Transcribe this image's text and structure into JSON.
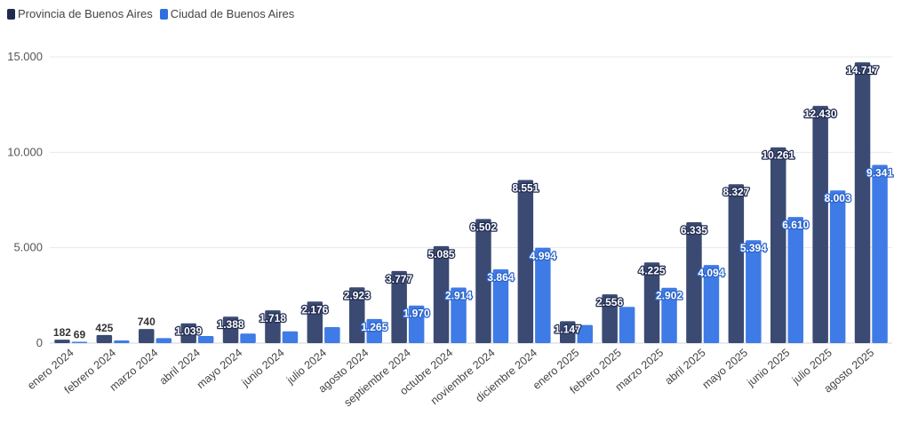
{
  "chart_data": {
    "type": "bar",
    "categories": [
      "enero 2024",
      "febrero 2024",
      "marzo 2024",
      "abril 2024",
      "mayo 2024",
      "junio 2024",
      "julio 2024",
      "agosto 2024",
      "septiembre 2024",
      "octubre 2024",
      "noviembre 2024",
      "diciembre 2024",
      "enero 2025",
      "febrero 2025",
      "marzo 2025",
      "abril 2025",
      "mayo 2025",
      "junio 2025",
      "julio 2025",
      "agosto 2025"
    ],
    "series": [
      {
        "name": "Provincia de Buenos Aires",
        "color": "#3b4a72",
        "values": [
          182,
          425,
          740,
          1039,
          1388,
          1718,
          2176,
          2923,
          3777,
          5085,
          6502,
          8551,
          1147,
          2556,
          4225,
          6335,
          8327,
          10261,
          12430,
          14717
        ],
        "labels": [
          "182",
          "425",
          "740",
          "1.039",
          "1.388",
          "1.718",
          "2.176",
          "2.923",
          "3.777",
          "5.085",
          "6.502",
          "8.551",
          "1.147",
          "2.556",
          "4.225",
          "6.335",
          "8.327",
          "10.261",
          "12.430",
          "14.717"
        ]
      },
      {
        "name": "Ciudad de Buenos Aires",
        "color": "#3f7be6",
        "values": [
          69,
          140,
          260,
          370,
          500,
          620,
          840,
          1265,
          1970,
          2914,
          3864,
          4994,
          950,
          1900,
          2902,
          4094,
          5394,
          6610,
          8003,
          9341
        ],
        "labels": [
          "69",
          "",
          "",
          "",
          "",
          "",
          "",
          "1.265",
          "1.970",
          "2.914",
          "3.864",
          "4.994",
          "",
          "",
          "2.902",
          "4.094",
          "5.394",
          "6.610",
          "8.003",
          "9.341"
        ]
      }
    ],
    "yticks": [
      0,
      5000,
      10000,
      15000
    ],
    "ytick_labels": [
      "0",
      "5.000",
      "10.000",
      "15.000"
    ],
    "ylim": [
      0,
      15500
    ],
    "legend": "top-left",
    "grid": true
  }
}
